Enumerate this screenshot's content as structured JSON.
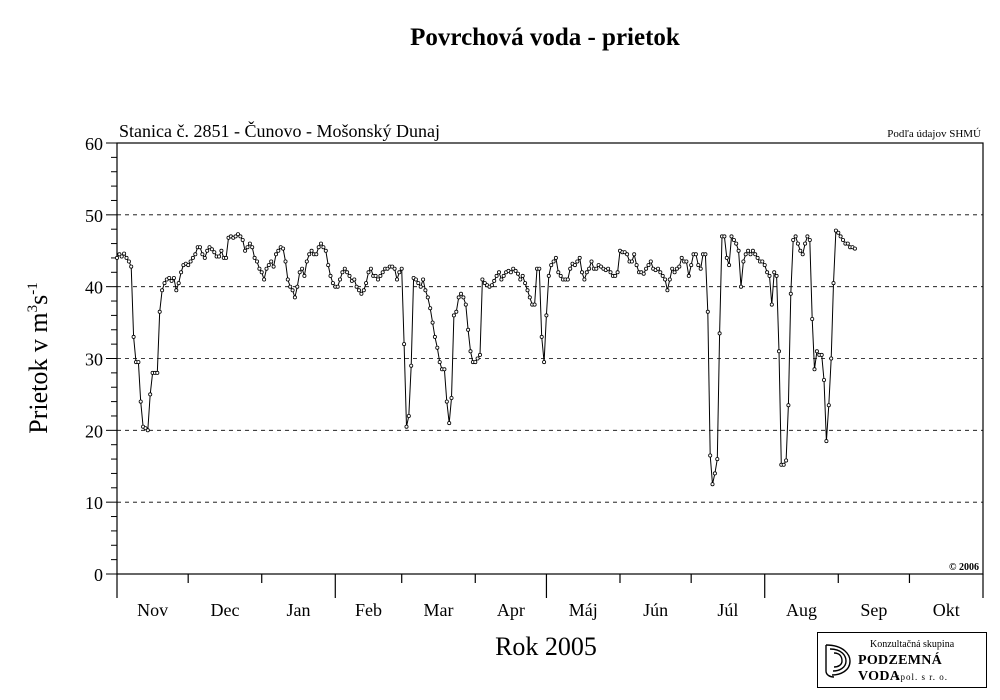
{
  "chart_data": {
    "type": "line",
    "title": "Povrchová voda - prietok",
    "subtitle": "Stanica č. 2851 - Čunovo - Mošonský Dunaj",
    "source_note": "Podľa údajov SHMÚ",
    "copyright": "© 2006",
    "xlabel": "Rok 2005",
    "ylabel_main": "Prietok v m",
    "ylabel_sup1": "3",
    "ylabel_mid": "s",
    "ylabel_sup2": "-1",
    "ylim": [
      0,
      60
    ],
    "yticks": [
      0,
      10,
      20,
      30,
      40,
      50,
      60
    ],
    "grid": "horizontal dashed",
    "x_range_days": [
      0,
      365
    ],
    "months": [
      "Nov",
      "Dec",
      "Jan",
      "Feb",
      "Mar",
      "Apr",
      "Máj",
      "Jún",
      "Júl",
      "Aug",
      "Sep",
      "Okt"
    ],
    "series": [
      {
        "marker": "circle",
        "points": [
          [
            0,
            44
          ],
          [
            1,
            44.5
          ],
          [
            2,
            44.2
          ],
          [
            3,
            44.6
          ],
          [
            4,
            44
          ],
          [
            5,
            43.5
          ],
          [
            6,
            42.8
          ],
          [
            7,
            33
          ],
          [
            8,
            29.5
          ],
          [
            9,
            29.5
          ],
          [
            10,
            24
          ],
          [
            11,
            20.5
          ],
          [
            12,
            20.3
          ],
          [
            13,
            20
          ],
          [
            14,
            25
          ],
          [
            15,
            28
          ],
          [
            16,
            28
          ],
          [
            17,
            28
          ],
          [
            18,
            36.5
          ],
          [
            19,
            39.5
          ],
          [
            20,
            40.5
          ],
          [
            21,
            41
          ],
          [
            22,
            41.2
          ],
          [
            23,
            40.8
          ],
          [
            24,
            41.2
          ],
          [
            25,
            39.5
          ],
          [
            26,
            40.5
          ],
          [
            27,
            42
          ],
          [
            28,
            43
          ],
          [
            29,
            43.2
          ],
          [
            30,
            43
          ],
          [
            31,
            43.5
          ],
          [
            32,
            44
          ],
          [
            33,
            44.5
          ],
          [
            34,
            45.5
          ],
          [
            35,
            45.5
          ],
          [
            36,
            44.5
          ],
          [
            37,
            44
          ],
          [
            38,
            45
          ],
          [
            39,
            45.5
          ],
          [
            40,
            45.2
          ],
          [
            41,
            44.8
          ],
          [
            42,
            44.2
          ],
          [
            43,
            44.2
          ],
          [
            44,
            45
          ],
          [
            45,
            44
          ],
          [
            46,
            44
          ],
          [
            47,
            46.8
          ],
          [
            48,
            47
          ],
          [
            49,
            46.8
          ],
          [
            50,
            47
          ],
          [
            51,
            47.3
          ],
          [
            52,
            47
          ],
          [
            53,
            46.5
          ],
          [
            54,
            45
          ],
          [
            55,
            45.5
          ],
          [
            56,
            46
          ],
          [
            57,
            45.5
          ],
          [
            58,
            44
          ],
          [
            59,
            43.5
          ],
          [
            60,
            42.5
          ],
          [
            61,
            42
          ],
          [
            62,
            41
          ],
          [
            63,
            42.5
          ],
          [
            64,
            43
          ],
          [
            65,
            43.5
          ],
          [
            66,
            42.8
          ],
          [
            67,
            44.5
          ],
          [
            68,
            45
          ],
          [
            69,
            45.5
          ],
          [
            70,
            45.3
          ],
          [
            71,
            43.5
          ],
          [
            72,
            41
          ],
          [
            73,
            40
          ],
          [
            74,
            39.5
          ],
          [
            75,
            38.5
          ],
          [
            76,
            40
          ],
          [
            77,
            42
          ],
          [
            78,
            42.5
          ],
          [
            79,
            41.5
          ],
          [
            80,
            43.5
          ],
          [
            81,
            44.5
          ],
          [
            82,
            45
          ],
          [
            83,
            44.5
          ],
          [
            84,
            44.5
          ],
          [
            85,
            45.5
          ],
          [
            86,
            46
          ],
          [
            87,
            45.5
          ],
          [
            88,
            45
          ],
          [
            89,
            43
          ],
          [
            90,
            41.5
          ],
          [
            91,
            40.5
          ],
          [
            92,
            40
          ],
          [
            93,
            40
          ],
          [
            94,
            41
          ],
          [
            95,
            42
          ],
          [
            96,
            42.5
          ],
          [
            97,
            42
          ],
          [
            98,
            41.5
          ],
          [
            99,
            40.8
          ],
          [
            100,
            41
          ],
          [
            101,
            40
          ],
          [
            102,
            39.5
          ],
          [
            103,
            39
          ],
          [
            104,
            39.5
          ],
          [
            105,
            40.5
          ],
          [
            106,
            42
          ],
          [
            107,
            42.5
          ],
          [
            108,
            41.5
          ],
          [
            109,
            41.5
          ],
          [
            110,
            41
          ],
          [
            111,
            41.5
          ],
          [
            112,
            42
          ],
          [
            113,
            42.5
          ],
          [
            114,
            42.5
          ],
          [
            115,
            42.8
          ],
          [
            116,
            42.8
          ],
          [
            117,
            42.5
          ],
          [
            118,
            41
          ],
          [
            119,
            42
          ],
          [
            120,
            42.5
          ],
          [
            121,
            32
          ],
          [
            122,
            20.5
          ],
          [
            123,
            22
          ],
          [
            124,
            29
          ],
          [
            125,
            41.2
          ],
          [
            126,
            41
          ],
          [
            127,
            40.5
          ],
          [
            128,
            40
          ],
          [
            129,
            41
          ],
          [
            130,
            39.5
          ],
          [
            131,
            38.5
          ],
          [
            132,
            37
          ],
          [
            133,
            35
          ],
          [
            134,
            33
          ],
          [
            135,
            31.5
          ],
          [
            136,
            29.5
          ],
          [
            137,
            28.5
          ],
          [
            138,
            28.5
          ],
          [
            139,
            24
          ],
          [
            140,
            21
          ],
          [
            141,
            24.5
          ],
          [
            142,
            36
          ],
          [
            143,
            36.5
          ],
          [
            144,
            38.5
          ],
          [
            145,
            39
          ],
          [
            146,
            38.5
          ],
          [
            147,
            37.5
          ],
          [
            148,
            34
          ],
          [
            149,
            31
          ],
          [
            150,
            29.5
          ],
          [
            151,
            29.5
          ],
          [
            152,
            30
          ],
          [
            153,
            30.5
          ],
          [
            154,
            41
          ],
          [
            155,
            40.5
          ],
          [
            156,
            40.2
          ],
          [
            157,
            40
          ],
          [
            158,
            40.2
          ],
          [
            159,
            40.8
          ],
          [
            160,
            41.5
          ],
          [
            161,
            42
          ],
          [
            162,
            41
          ],
          [
            163,
            41.5
          ],
          [
            164,
            42
          ],
          [
            165,
            42.2
          ],
          [
            166,
            42
          ],
          [
            167,
            42.5
          ],
          [
            168,
            42.2
          ],
          [
            169,
            41.8
          ],
          [
            170,
            41
          ],
          [
            171,
            41.5
          ],
          [
            172,
            40.5
          ],
          [
            173,
            39.5
          ],
          [
            174,
            38.5
          ],
          [
            175,
            37.5
          ],
          [
            176,
            37.5
          ],
          [
            177,
            42.5
          ],
          [
            178,
            42.5
          ],
          [
            179,
            33
          ],
          [
            180,
            29.5
          ],
          [
            181,
            36
          ],
          [
            182,
            41.5
          ],
          [
            183,
            43
          ],
          [
            184,
            43.5
          ],
          [
            185,
            44
          ],
          [
            186,
            42
          ],
          [
            187,
            41.5
          ],
          [
            188,
            41
          ],
          [
            189,
            41
          ],
          [
            190,
            41
          ],
          [
            191,
            42.5
          ],
          [
            192,
            43.2
          ],
          [
            193,
            43
          ],
          [
            194,
            43.5
          ],
          [
            195,
            44
          ],
          [
            196,
            42
          ],
          [
            197,
            41
          ],
          [
            198,
            42
          ],
          [
            199,
            42.5
          ],
          [
            200,
            43.5
          ],
          [
            201,
            42.5
          ],
          [
            202,
            42.5
          ],
          [
            203,
            43
          ],
          [
            204,
            42.8
          ],
          [
            205,
            42.5
          ],
          [
            206,
            42.3
          ],
          [
            207,
            42.5
          ],
          [
            208,
            42
          ],
          [
            209,
            41.5
          ],
          [
            210,
            41.5
          ],
          [
            211,
            42
          ],
          [
            212,
            45
          ],
          [
            213,
            44.8
          ],
          [
            214,
            44.8
          ],
          [
            215,
            44.5
          ],
          [
            216,
            43.5
          ],
          [
            217,
            43.5
          ],
          [
            218,
            44.5
          ],
          [
            219,
            43
          ],
          [
            220,
            42
          ],
          [
            221,
            42
          ],
          [
            222,
            41.8
          ],
          [
            223,
            42.5
          ],
          [
            224,
            43
          ],
          [
            225,
            43.5
          ],
          [
            226,
            42.5
          ],
          [
            227,
            42.3
          ],
          [
            228,
            42.5
          ],
          [
            229,
            42
          ],
          [
            230,
            41.5
          ],
          [
            231,
            41
          ],
          [
            232,
            39.5
          ],
          [
            233,
            41
          ],
          [
            234,
            42.5
          ],
          [
            235,
            42
          ],
          [
            236,
            42.5
          ],
          [
            237,
            42.8
          ],
          [
            238,
            44
          ],
          [
            239,
            43.5
          ],
          [
            240,
            43.5
          ],
          [
            241,
            41.5
          ],
          [
            242,
            43
          ],
          [
            243,
            44.5
          ],
          [
            244,
            44.5
          ],
          [
            245,
            43
          ],
          [
            246,
            42.5
          ],
          [
            247,
            44.5
          ],
          [
            248,
            44.5
          ],
          [
            249,
            36.5
          ],
          [
            250,
            16.5
          ],
          [
            251,
            12.5
          ],
          [
            252,
            14
          ],
          [
            253,
            16
          ],
          [
            254,
            33.5
          ],
          [
            255,
            47
          ],
          [
            256,
            47
          ],
          [
            257,
            44
          ],
          [
            258,
            43
          ],
          [
            259,
            47
          ],
          [
            260,
            46.5
          ],
          [
            261,
            46
          ],
          [
            262,
            45
          ],
          [
            263,
            40
          ],
          [
            264,
            43.5
          ],
          [
            265,
            44.5
          ],
          [
            266,
            45
          ],
          [
            267,
            44.5
          ],
          [
            268,
            45
          ],
          [
            269,
            44.5
          ],
          [
            270,
            44
          ],
          [
            271,
            43.5
          ],
          [
            272,
            43.5
          ],
          [
            273,
            43
          ],
          [
            274,
            42
          ],
          [
            275,
            41.5
          ],
          [
            276,
            37.5
          ],
          [
            277,
            42
          ],
          [
            278,
            41.5
          ],
          [
            279,
            31
          ],
          [
            280,
            15.2
          ],
          [
            281,
            15.2
          ],
          [
            282,
            15.8
          ],
          [
            283,
            23.5
          ],
          [
            284,
            39
          ],
          [
            285,
            46.5
          ],
          [
            286,
            47
          ],
          [
            287,
            46
          ],
          [
            288,
            45
          ],
          [
            289,
            44.5
          ],
          [
            290,
            46
          ],
          [
            291,
            47
          ],
          [
            292,
            46.5
          ],
          [
            293,
            35.5
          ],
          [
            294,
            28.5
          ],
          [
            295,
            31
          ],
          [
            296,
            30.5
          ],
          [
            297,
            30.5
          ],
          [
            298,
            27
          ],
          [
            299,
            18.5
          ],
          [
            300,
            23.5
          ],
          [
            301,
            30
          ],
          [
            302,
            40.5
          ],
          [
            303,
            47.8
          ],
          [
            304,
            47.5
          ],
          [
            305,
            47
          ],
          [
            306,
            46.5
          ],
          [
            307,
            46
          ],
          [
            308,
            46
          ],
          [
            309,
            45.5
          ],
          [
            310,
            45.5
          ],
          [
            311,
            45.3
          ]
        ]
      }
    ]
  },
  "logo": {
    "line1": "Konzultačná skupina",
    "line2": "PODZEMNÁ VODA",
    "line3": "spol. s r. o."
  }
}
